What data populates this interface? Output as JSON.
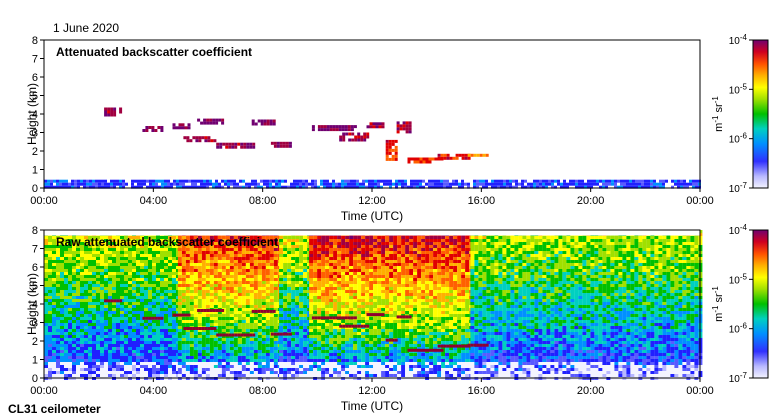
{
  "header": {
    "date": "1 June 2020"
  },
  "footer": {
    "instrument": "CL31 ceilometer"
  },
  "colors": {
    "colormap": [
      "#f4f4ff",
      "#b8b8ff",
      "#5a5aff",
      "#2020ff",
      "#0090ff",
      "#00d0c0",
      "#00c000",
      "#a0e000",
      "#ffff00",
      "#ffb000",
      "#ff6000",
      "#e00000",
      "#a00040",
      "#700070"
    ]
  },
  "chart_data": [
    {
      "type": "heatmap",
      "title": "Attenuated backscatter coefficient",
      "xlabel": "Time (UTC)",
      "ylabel": "Height (km)",
      "xlim": [
        0,
        24
      ],
      "ylim": [
        0,
        8
      ],
      "x_ticks": [
        "00:00",
        "04:00",
        "08:00",
        "12:00",
        "16:00",
        "20:00",
        "00:00"
      ],
      "y_ticks": [
        "0",
        "1",
        "2",
        "3",
        "4",
        "5",
        "6",
        "7",
        "8"
      ],
      "colorbar": {
        "label": "m-1 sr-1",
        "scale": "log",
        "range": [
          1e-07,
          0.0001
        ],
        "ticks": [
          "10-4",
          "10-5",
          "10-6",
          "10-7"
        ]
      },
      "features": [
        {
          "kind": "surface_layer",
          "t0": 0,
          "t1": 24,
          "h0": 0,
          "h1": 0.45,
          "level": 0.25
        },
        {
          "kind": "cloud",
          "t0": 2.2,
          "t1": 2.8,
          "h0": 4.0,
          "h1": 4.35,
          "level": 0.9
        },
        {
          "kind": "cloud",
          "t0": 3.6,
          "t1": 4.3,
          "h0": 3.1,
          "h1": 3.35,
          "level": 0.95
        },
        {
          "kind": "cloud",
          "t0": 4.7,
          "t1": 5.3,
          "h0": 3.3,
          "h1": 3.5,
          "level": 0.95
        },
        {
          "kind": "cloud",
          "t0": 5.6,
          "t1": 6.5,
          "h0": 3.55,
          "h1": 3.75,
          "level": 0.95
        },
        {
          "kind": "cloud",
          "t0": 5.1,
          "t1": 6.2,
          "h0": 2.55,
          "h1": 2.8,
          "level": 0.9
        },
        {
          "kind": "cloud",
          "t0": 6.3,
          "t1": 7.7,
          "h0": 2.2,
          "h1": 2.45,
          "level": 0.9
        },
        {
          "kind": "cloud",
          "t0": 7.6,
          "t1": 8.4,
          "h0": 3.5,
          "h1": 3.7,
          "level": 0.95
        },
        {
          "kind": "cloud",
          "t0": 8.3,
          "t1": 9.0,
          "h0": 2.25,
          "h1": 2.5,
          "level": 0.9
        },
        {
          "kind": "cloud",
          "t0": 9.8,
          "t1": 11.4,
          "h0": 3.1,
          "h1": 3.4,
          "level": 0.95
        },
        {
          "kind": "cloud",
          "t0": 10.8,
          "t1": 11.8,
          "h0": 2.6,
          "h1": 3.0,
          "level": 0.9
        },
        {
          "kind": "cloud",
          "t0": 11.8,
          "t1": 12.4,
          "h0": 3.3,
          "h1": 3.55,
          "level": 0.9
        },
        {
          "kind": "cloud",
          "t0": 12.5,
          "t1": 12.9,
          "h0": 1.5,
          "h1": 2.6,
          "level": 0.8
        },
        {
          "kind": "cloud",
          "t0": 12.9,
          "t1": 13.4,
          "h0": 3.0,
          "h1": 3.6,
          "level": 0.9
        },
        {
          "kind": "cloud",
          "t0": 13.3,
          "t1": 14.6,
          "h0": 1.35,
          "h1": 1.65,
          "level": 0.8
        },
        {
          "kind": "cloud",
          "t0": 14.4,
          "t1": 15.6,
          "h0": 1.6,
          "h1": 1.85,
          "level": 0.82
        },
        {
          "kind": "cloud",
          "t0": 15.5,
          "t1": 16.2,
          "h0": 1.7,
          "h1": 1.85,
          "level": 0.75
        }
      ]
    },
    {
      "type": "heatmap",
      "title": "Raw attenuated backscatter coefficient",
      "xlabel": "Time (UTC)",
      "ylabel": "Height (km)",
      "xlim": [
        0,
        24
      ],
      "ylim": [
        0,
        8
      ],
      "x_ticks": [
        "00:00",
        "04:00",
        "08:00",
        "12:00",
        "16:00",
        "20:00",
        "00:00"
      ],
      "y_ticks": [
        "0",
        "1",
        "2",
        "3",
        "4",
        "5",
        "6",
        "7",
        "8"
      ],
      "colorbar": {
        "label": "m-1 sr-1",
        "scale": "log",
        "range": [
          1e-07,
          0.0001
        ],
        "ticks": [
          "10-4",
          "10-5",
          "10-6",
          "10-7"
        ]
      },
      "noise_regions": [
        {
          "t0": 0,
          "t1": 4.9,
          "top_level": 0.58
        },
        {
          "t0": 4.9,
          "t1": 8.6,
          "top_level": 0.82
        },
        {
          "t0": 8.6,
          "t1": 9.7,
          "top_level": 0.6
        },
        {
          "t0": 9.7,
          "t1": 15.6,
          "top_level": 0.85
        },
        {
          "t0": 15.6,
          "t1": 24,
          "top_level": 0.56
        }
      ]
    }
  ]
}
